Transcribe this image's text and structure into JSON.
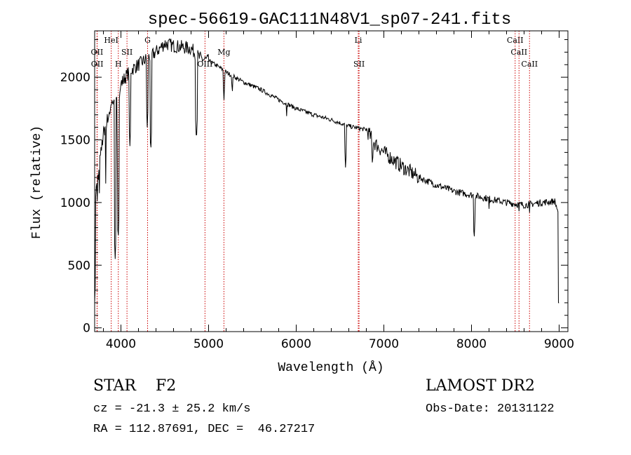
{
  "chart_data": {
    "type": "line",
    "title": "spec-56619-GAC111N48V1_sp07-241.fits",
    "xlabel": "Wavelength (Å)",
    "ylabel": "Flux (relative)",
    "xlim": [
      3700,
      9100
    ],
    "ylim": [
      -30,
      2370
    ],
    "xticks": [
      "4000",
      "5000",
      "6000",
      "7000",
      "8000",
      "9000"
    ],
    "yticks": [
      "0",
      "500",
      "1000",
      "1500",
      "2000"
    ],
    "xtick_values": [
      4000,
      5000,
      6000,
      7000,
      8000,
      9000
    ],
    "ytick_values": [
      0,
      500,
      1000,
      1500,
      2000
    ],
    "continuum": [
      [
        3700,
        1000
      ],
      [
        3800,
        1550
      ],
      [
        3900,
        1800
      ],
      [
        4000,
        1950
      ],
      [
        4100,
        2050
      ],
      [
        4200,
        2100
      ],
      [
        4300,
        2150
      ],
      [
        4400,
        2200
      ],
      [
        4500,
        2270
      ],
      [
        4600,
        2250
      ],
      [
        4700,
        2240
      ],
      [
        4800,
        2230
      ],
      [
        4900,
        2150
      ],
      [
        5000,
        2130
      ],
      [
        5100,
        2090
      ],
      [
        5200,
        2040
      ],
      [
        5300,
        2000
      ],
      [
        5400,
        1960
      ],
      [
        5500,
        1930
      ],
      [
        5600,
        1900
      ],
      [
        5800,
        1820
      ],
      [
        6000,
        1750
      ],
      [
        6200,
        1700
      ],
      [
        6400,
        1660
      ],
      [
        6600,
        1610
      ],
      [
        6800,
        1580
      ],
      [
        6900,
        1470
      ],
      [
        7000,
        1400
      ],
      [
        7200,
        1290
      ],
      [
        7400,
        1200
      ],
      [
        7600,
        1140
      ],
      [
        7800,
        1090
      ],
      [
        8000,
        1060
      ],
      [
        8200,
        1030
      ],
      [
        8400,
        1000
      ],
      [
        8600,
        980
      ],
      [
        8800,
        1000
      ],
      [
        8950,
        1010
      ],
      [
        9000,
        900
      ]
    ],
    "absorption": [
      [
        3934,
        550
      ],
      [
        3968,
        700
      ],
      [
        4102,
        1450
      ],
      [
        4300,
        1600
      ],
      [
        4340,
        1400
      ],
      [
        4861,
        1480
      ],
      [
        5175,
        1800
      ],
      [
        5270,
        1850
      ],
      [
        5890,
        1690
      ],
      [
        6563,
        1260
      ],
      [
        6870,
        1280
      ],
      [
        7600,
        1120
      ],
      [
        8030,
        690
      ],
      [
        8200,
        950
      ],
      [
        8542,
        930
      ],
      [
        8662,
        920
      ]
    ],
    "lines": [
      {
        "label": "OII",
        "x": 3727,
        "row": 2
      },
      {
        "label": "OII",
        "x": 3729,
        "row": 3
      },
      {
        "label": "HeI",
        "x": 3889,
        "row": 1
      },
      {
        "label": "SII",
        "x": 4069,
        "row": 2
      },
      {
        "label": "H",
        "x": 3970,
        "row": 3
      },
      {
        "label": "G",
        "x": 4304,
        "row": 1
      },
      {
        "label": "OIII",
        "x": 4959,
        "row": 3
      },
      {
        "label": "Mg",
        "x": 5175,
        "row": 2
      },
      {
        "label": "Li",
        "x": 6708,
        "row": 1
      },
      {
        "label": "SII",
        "x": 6717,
        "row": 3
      },
      {
        "label": "CaII",
        "x": 8498,
        "row": 1
      },
      {
        "label": "CaII",
        "x": 8542,
        "row": 2
      },
      {
        "label": "CaII",
        "x": 8662,
        "row": 3
      }
    ],
    "grid": false,
    "line_color": "#000000",
    "marker_color": "#cc0000"
  },
  "info": {
    "star_type": "STAR    F2",
    "survey": "LAMOST DR2",
    "cz": "cz = -21.3 ± 25.2 km/s",
    "obs_date": "Obs-Date: 20131122",
    "radec": "RA = 112.87691, DEC =  46.27217"
  }
}
